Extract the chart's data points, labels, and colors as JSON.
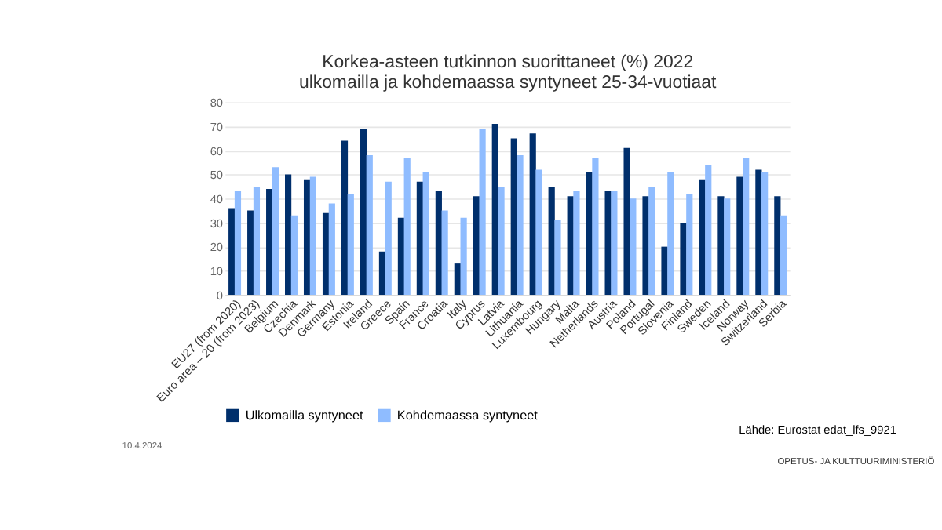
{
  "chart_data": {
    "type": "bar",
    "title": "Korkea-asteen tutkinnon suorittaneet (%) 2022\nulkomailla ja kohdemaassa syntyneet 25-34-vuotiaat",
    "categories": [
      "EU27 (from 2020)",
      "Euro area – 20 (from 2023)",
      "Belgium",
      "Czechia",
      "Denmark",
      "Germany",
      "Estonia",
      "Ireland",
      "Greece",
      "Spain",
      "France",
      "Croatia",
      "Italy",
      "Cyprus",
      "Latvia",
      "Lithuania",
      "Luxembourg",
      "Hungary",
      "Malta",
      "Netherlands",
      "Austria",
      "Poland",
      "Portugal",
      "Slovenia",
      "Finland",
      "Sweden",
      "Iceland",
      "Norway",
      "Switzerland",
      "Serbia"
    ],
    "series": [
      {
        "name": "Ulkomailla syntyneet",
        "color": "#002f6c",
        "values": [
          36,
          35,
          44,
          50,
          48,
          34,
          64,
          69,
          18,
          32,
          47,
          43,
          13,
          41,
          71,
          65,
          67,
          45,
          41,
          51,
          43,
          61,
          41,
          20,
          30,
          48,
          41,
          49,
          52,
          41
        ]
      },
      {
        "name": "Kohdemaassa syntyneet",
        "color": "#8fbcff",
        "values": [
          43,
          45,
          53,
          33,
          49,
          38,
          42,
          58,
          47,
          57,
          51,
          35,
          32,
          69,
          45,
          58,
          52,
          31,
          43,
          57,
          43,
          40,
          45,
          51,
          42,
          54,
          40,
          57,
          51,
          33
        ]
      }
    ],
    "ylim": [
      0,
      80
    ],
    "yticks": [
      0,
      10,
      20,
      30,
      40,
      50,
      60,
      70,
      80
    ],
    "grid": "y",
    "legend": "bottom",
    "annotations": [
      "Lähde: Eurostat edat_lfs_9921",
      "10.4.2024",
      "OPETUS- JA KULTTUURIMINISTERIÖ"
    ]
  }
}
